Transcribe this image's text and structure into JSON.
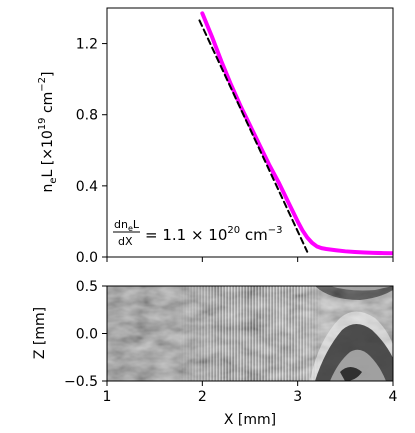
{
  "chart_data": [
    {
      "type": "line",
      "xlim": [
        1,
        4
      ],
      "ylim": [
        0,
        1.4
      ],
      "yticks": [
        0.0,
        0.4,
        0.8,
        1.2
      ],
      "ytick_labels": [
        "0.0",
        "0.4",
        "0.8",
        "1.2"
      ],
      "ylabel": {
        "base": "n",
        "sub1": "e",
        "mid": "L [×10",
        "sup": "19",
        "tail": " cm",
        "sup2": "−2",
        "end": "]"
      },
      "annotation": {
        "frac_num_base": "dn",
        "frac_num_sub": "e",
        "frac_num_tail": "L",
        "frac_den": "dX",
        "value_text": "= 1.1 × 10",
        "value_sup": "20",
        "unit": " cm",
        "unit_sup": "−3"
      },
      "series": [
        {
          "color": "#ff00ff",
          "x": [
            2.0,
            2.1,
            2.2,
            2.3,
            2.4,
            2.5,
            2.6,
            2.7,
            2.8,
            2.9,
            3.0,
            3.05,
            3.1,
            3.15,
            3.2,
            3.25,
            3.3,
            3.4,
            3.5,
            3.6,
            3.7,
            3.8,
            3.9,
            4.0
          ],
          "y": [
            1.37,
            1.24,
            1.1,
            0.97,
            0.85,
            0.74,
            0.63,
            0.52,
            0.42,
            0.31,
            0.2,
            0.15,
            0.11,
            0.08,
            0.06,
            0.05,
            0.045,
            0.038,
            0.032,
            0.028,
            0.025,
            0.023,
            0.022,
            0.021
          ]
        },
        {
          "style": "dashed",
          "color": "#000000",
          "x": [
            1.97,
            3.1
          ],
          "y": [
            1.33,
            0.03
          ]
        }
      ]
    },
    {
      "type": "heatmap",
      "xlim": [
        1,
        4
      ],
      "ylim": [
        -0.5,
        0.5
      ],
      "xticks": [
        1,
        2,
        3,
        4
      ],
      "xtick_labels": [
        "1",
        "2",
        "3",
        "4"
      ],
      "yticks": [
        0.5,
        0.0,
        -0.5
      ],
      "ytick_labels": [
        "0.5",
        "0.0",
        "−0.5"
      ],
      "xlabel": "X [mm]",
      "ylabel": "Z [mm]",
      "colormap": "gray"
    }
  ]
}
